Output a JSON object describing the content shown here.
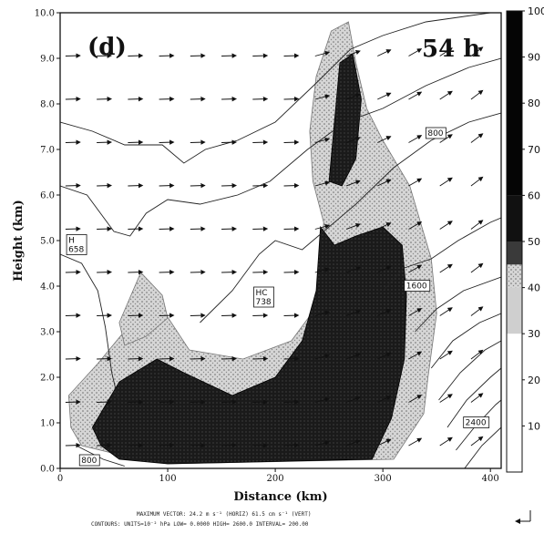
{
  "chart_data": {
    "type": "heatmap",
    "panel_label": "(d)",
    "time_label": "54 h",
    "xlabel": "Distance (km)",
    "ylabel": "Height (km)",
    "xlim": [
      0,
      410
    ],
    "ylim": [
      0,
      10
    ],
    "x_ticks": [
      0,
      100,
      200,
      300,
      400
    ],
    "y_ticks": [
      "0.0",
      "1.0",
      "2.0",
      "3.0",
      "4.0",
      "5.0",
      "6.0",
      "7.0",
      "8.0",
      "9.0",
      "10.0"
    ],
    "colorbar": {
      "ticks": [
        10,
        20,
        30,
        40,
        50,
        60,
        70,
        80,
        90,
        100
      ],
      "range": [
        0,
        100
      ]
    },
    "contour_labels": [
      {
        "text": "H\n658",
        "x": 6,
        "y": 4.95
      },
      {
        "text": "HC\n738",
        "x": 180,
        "y": 3.8
      },
      {
        "text": "800",
        "x": 340,
        "y": 7.3
      },
      {
        "text": "1600",
        "x": 320,
        "y": 3.95
      },
      {
        "text": "2400",
        "x": 375,
        "y": 0.95
      },
      {
        "text": "800",
        "x": 18,
        "y": 0.12
      }
    ],
    "regions": [
      {
        "level": "light",
        "polygon": [
          [
            8,
            1.6
          ],
          [
            35,
            2.3
          ],
          [
            70,
            3.3
          ],
          [
            95,
            3.5
          ],
          [
            120,
            2.6
          ],
          [
            170,
            2.4
          ],
          [
            215,
            2.8
          ],
          [
            240,
            3.6
          ],
          [
            245,
            5.4
          ],
          [
            235,
            6.3
          ],
          [
            232,
            7.4
          ],
          [
            238,
            8.6
          ],
          [
            252,
            9.6
          ],
          [
            268,
            9.8
          ],
          [
            275,
            8.9
          ],
          [
            285,
            7.9
          ],
          [
            300,
            7.2
          ],
          [
            325,
            6.2
          ],
          [
            345,
            4.6
          ],
          [
            350,
            3.4
          ],
          [
            342,
            2.0
          ],
          [
            338,
            1.2
          ],
          [
            310,
            0.2
          ],
          [
            100,
            0.1
          ],
          [
            55,
            0.3
          ],
          [
            20,
            0.5
          ],
          [
            10,
            0.9
          ]
        ]
      },
      {
        "level": "light",
        "polygon": [
          [
            55,
            3.2
          ],
          [
            75,
            4.3
          ],
          [
            95,
            3.8
          ],
          [
            100,
            3.3
          ],
          [
            80,
            2.9
          ],
          [
            60,
            2.7
          ]
        ]
      },
      {
        "level": "dark",
        "polygon": [
          [
            30,
            0.9
          ],
          [
            55,
            1.9
          ],
          [
            90,
            2.4
          ],
          [
            115,
            2.1
          ],
          [
            160,
            1.6
          ],
          [
            200,
            2.0
          ],
          [
            225,
            2.8
          ],
          [
            238,
            3.9
          ],
          [
            242,
            5.3
          ],
          [
            255,
            4.9
          ],
          [
            275,
            5.1
          ],
          [
            300,
            5.3
          ],
          [
            318,
            4.9
          ],
          [
            322,
            3.8
          ],
          [
            320,
            2.4
          ],
          [
            308,
            1.1
          ],
          [
            290,
            0.2
          ],
          [
            100,
            0.1
          ],
          [
            55,
            0.2
          ],
          [
            38,
            0.5
          ]
        ]
      },
      {
        "level": "dark",
        "polygon": [
          [
            250,
            6.3
          ],
          [
            260,
            8.9
          ],
          [
            272,
            9.1
          ],
          [
            280,
            8.1
          ],
          [
            275,
            6.8
          ],
          [
            262,
            6.2
          ]
        ]
      }
    ],
    "max_vector_note": "MAXIMUM VECTOR:  24.2 m s⁻¹ (HORIZ)        61.5 cm s⁻¹ (VERT)",
    "contours_note": "CONTOURS:  UNITS=10⁻² hPa  LOW=  0.0000       HIGH=  2600.0      INTERVAL=    200.00"
  }
}
